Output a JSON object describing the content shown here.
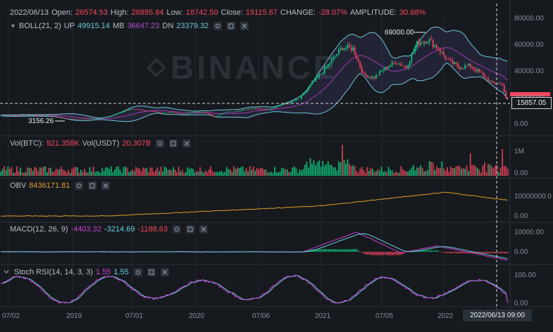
{
  "colors": {
    "background": "#161a1e",
    "grid": "#23282e",
    "up": "#0ecb81",
    "down": "#f6465d",
    "text": "#b7bdc6",
    "boll_band": "#6fc6d8",
    "boll_mb": "#a03bb0",
    "obv": "#e39a2b",
    "macd_dif": "#c93fd3",
    "macd_dea": "#69d0dc",
    "stoch_k": "#c93fd3",
    "stoch_d": "#69d0dc"
  },
  "header": {
    "date": "2022/06/13",
    "open_label": "Open:",
    "open": "26574.53",
    "high_label": "High:",
    "high": "26895.84",
    "low_label": "Low:",
    "low": "18742.50",
    "close_label": "Close:",
    "close": "19115.67",
    "change_label": "CHANGE:",
    "change": "-28.07%",
    "amplitude_label": "AMPLITUDE:",
    "amplitude": "30.68%"
  },
  "boll": {
    "label": "BOLL(21, 2)",
    "up_label": "UP",
    "up": "49915.14",
    "mb_label": "MB",
    "mb": "36647.23",
    "dn_label": "DN",
    "dn": "23379.32"
  },
  "vol": {
    "btc_label": "Vol(BTC):",
    "btc": "921.358K",
    "usdt_label": "Vol(USDT)",
    "usdt": "20.307B"
  },
  "obv": {
    "label": "OBV",
    "value": "8436171.81"
  },
  "macd": {
    "label": "MACD(12, 26, 9)",
    "v1": "-4403.32",
    "v2": "-3214.69",
    "v3": "-1188.63"
  },
  "stoch": {
    "label": "Stoch RSI(14, 14, 3, 3)",
    "k": "1.55",
    "d": "1.55"
  },
  "watermark": "BINANCE",
  "crosshair": {
    "price": "15857.05",
    "time": "2022/06/13 09:00"
  },
  "annotations": {
    "high": "69000.00",
    "low": "3156.26"
  },
  "axes": {
    "price_ticks": [
      "80000.00",
      "60000.00",
      "40000.00",
      "20000.00",
      "0.00"
    ],
    "vol_ticks": [
      "1M",
      "0.00"
    ],
    "obv_ticks": [
      "10000000.0",
      "0.00"
    ],
    "macd_ticks": [
      "10000.00",
      "0.00"
    ],
    "stoch_ticks": [
      "100.00",
      "0.00"
    ],
    "time_ticks": [
      "07/02",
      "2019",
      "07/01",
      "2020",
      "07/06",
      "2021",
      "07/05",
      "2022"
    ]
  },
  "chart_data": {
    "type": "candlestick",
    "x_ticks": [
      "07/02",
      "2019",
      "07/01",
      "2020",
      "07/06",
      "2021",
      "07/05",
      "2022"
    ],
    "price_ylim": [
      0,
      85000
    ],
    "close_series": [
      [
        0,
        6400
      ],
      [
        6,
        6200
      ],
      [
        12,
        6500
      ],
      [
        18,
        6400
      ],
      [
        24,
        6300
      ],
      [
        30,
        5800
      ],
      [
        36,
        4000
      ],
      [
        42,
        3500
      ],
      [
        48,
        3800
      ],
      [
        54,
        4100
      ],
      [
        60,
        5200
      ],
      [
        66,
        8000
      ],
      [
        72,
        11000
      ],
      [
        78,
        10500
      ],
      [
        84,
        9800
      ],
      [
        90,
        8200
      ],
      [
        96,
        8800
      ],
      [
        102,
        7300
      ],
      [
        108,
        8600
      ],
      [
        114,
        9300
      ],
      [
        120,
        5300
      ],
      [
        126,
        8800
      ],
      [
        132,
        9500
      ],
      [
        138,
        11000
      ],
      [
        144,
        11500
      ],
      [
        150,
        10800
      ],
      [
        156,
        13700
      ],
      [
        162,
        15800
      ],
      [
        168,
        19000
      ],
      [
        174,
        29000
      ],
      [
        180,
        38000
      ],
      [
        186,
        48000
      ],
      [
        192,
        58000
      ],
      [
        198,
        57000
      ],
      [
        204,
        37000
      ],
      [
        210,
        35000
      ],
      [
        216,
        42000
      ],
      [
        222,
        47000
      ],
      [
        228,
        43000
      ],
      [
        234,
        61000
      ],
      [
        240,
        64000
      ],
      [
        246,
        57000
      ],
      [
        252,
        47000
      ],
      [
        258,
        43000
      ],
      [
        264,
        44000
      ],
      [
        270,
        38000
      ],
      [
        276,
        31000
      ],
      [
        282,
        30000
      ],
      [
        284,
        19115.67
      ]
    ],
    "boll_up_latest": 49915.14,
    "boll_mb_latest": 36647.23,
    "boll_dn_latest": 23379.32,
    "obv_latest": 8436171.81,
    "obv_ylim": [
      0,
      15000000
    ],
    "macd_latest": [
      -4403.32,
      -3214.69,
      -1188.63
    ],
    "stoch_rsi_latest": [
      1.55,
      1.55
    ],
    "stoch_ylim": [
      0,
      100
    ]
  }
}
